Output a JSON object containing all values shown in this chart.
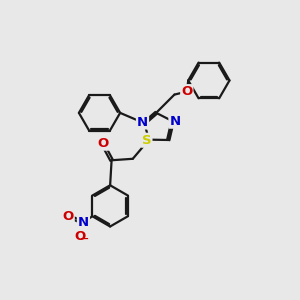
{
  "background_color": "#e8e8e8",
  "bond_color": "#1a1a1a",
  "bond_width": 1.6,
  "atom_colors": {
    "N": "#0000cc",
    "O": "#cc0000",
    "S": "#cccc00",
    "C": "#1a1a1a"
  },
  "font_size_atom": 9.5,
  "figsize": [
    3.0,
    3.0
  ],
  "dpi": 100
}
